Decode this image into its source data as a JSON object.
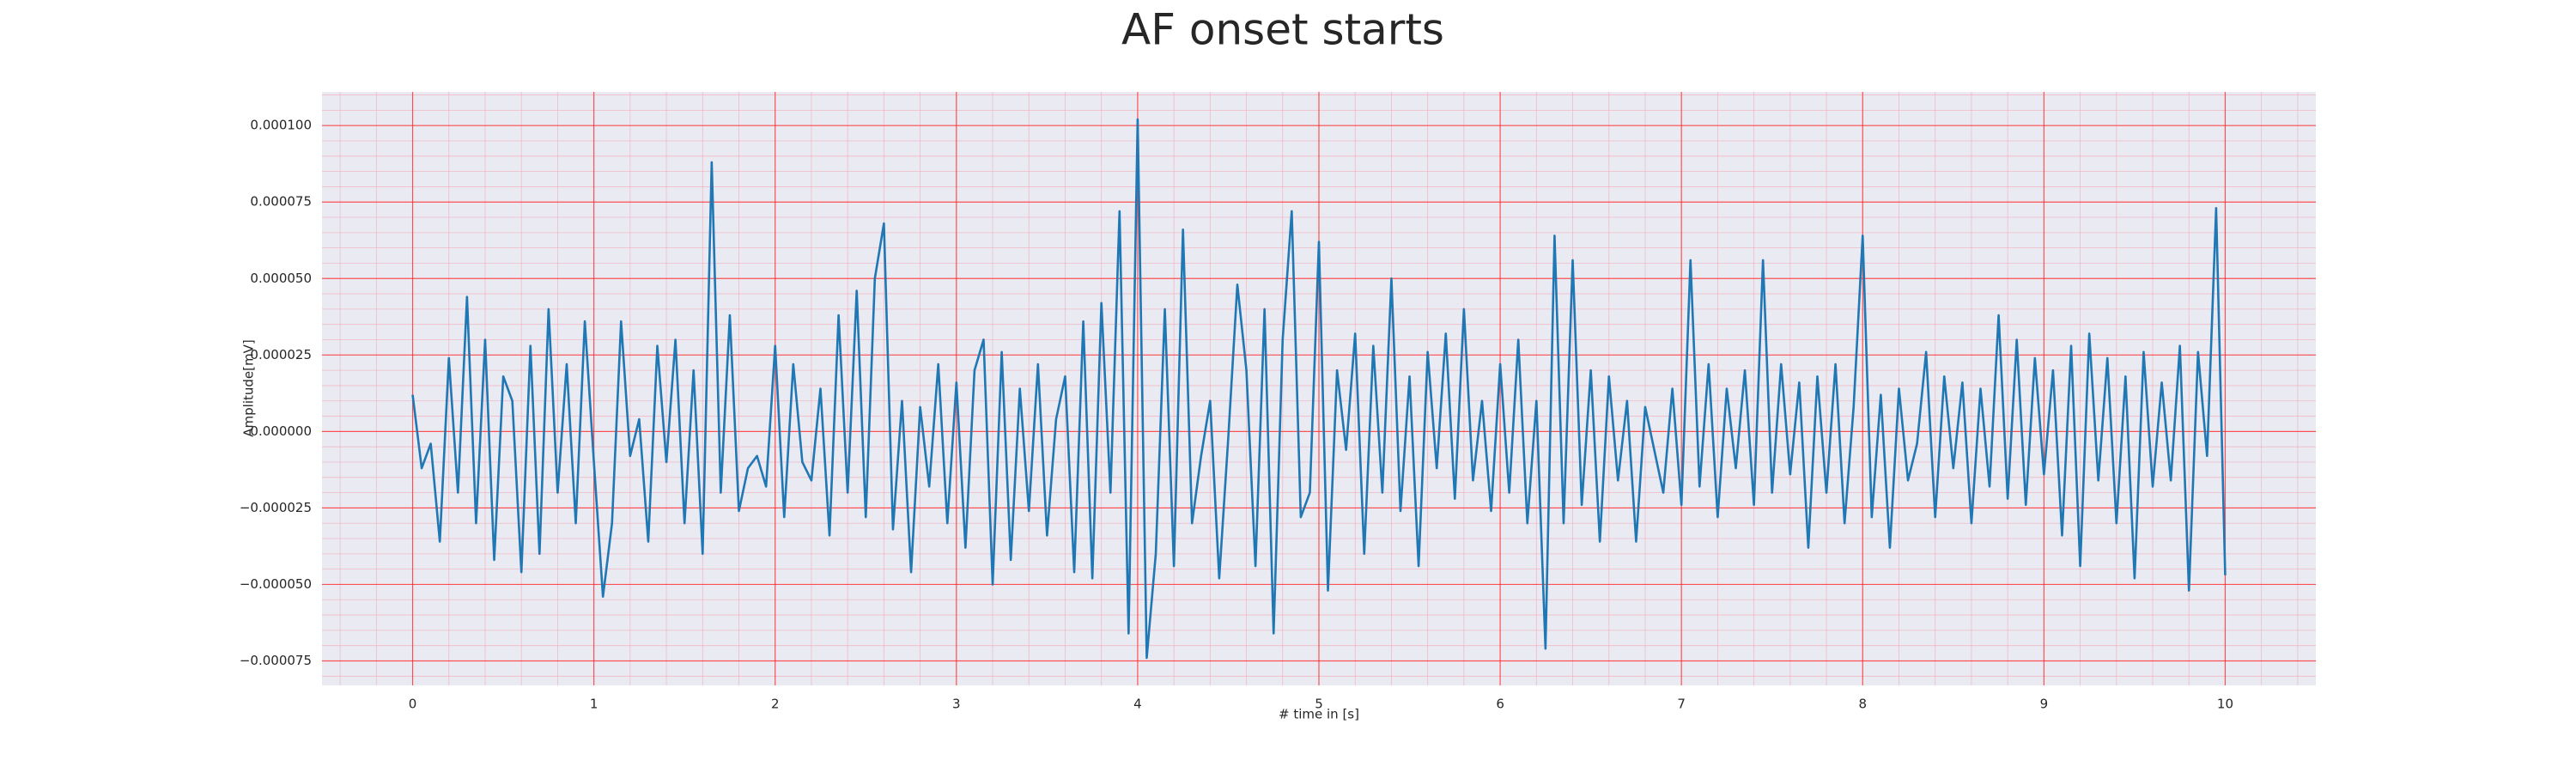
{
  "chart_data": {
    "type": "line",
    "title": "AF onset starts",
    "x_label": "# time in [s]",
    "y_label": "Amplitude[mV]",
    "color": "#1f77b4",
    "grid": true,
    "minor_grid": true,
    "xlim": [
      -0.5,
      10.5
    ],
    "ylim": [
      -8.3e-05,
      0.000111
    ],
    "xticks": [
      0,
      1,
      2,
      3,
      4,
      5,
      6,
      7,
      8,
      9,
      10
    ],
    "yticks": [
      {
        "value": -7.5e-05,
        "label": "−0.000075"
      },
      {
        "value": -5e-05,
        "label": "−0.000050"
      },
      {
        "value": -2.5e-05,
        "label": "−0.000025"
      },
      {
        "value": 0,
        "label": "0.000000"
      },
      {
        "value": 2.5e-05,
        "label": "0.000025"
      },
      {
        "value": 5e-05,
        "label": "0.000050"
      },
      {
        "value": 7.5e-05,
        "label": "0.000075"
      },
      {
        "value": 0.0001,
        "label": "0.000100"
      }
    ],
    "x": [
      0,
      0.05,
      0.1,
      0.15,
      0.2,
      0.25,
      0.3,
      0.35,
      0.4,
      0.45,
      0.5,
      0.55,
      0.6,
      0.65,
      0.7,
      0.75,
      0.8,
      0.85,
      0.9,
      0.95,
      1,
      1.05,
      1.1,
      1.15,
      1.2,
      1.25,
      1.3,
      1.35,
      1.4,
      1.45,
      1.5,
      1.55,
      1.6,
      1.65,
      1.7,
      1.75,
      1.8,
      1.85,
      1.9,
      1.95,
      2,
      2.05,
      2.1,
      2.15,
      2.2,
      2.25,
      2.3,
      2.35,
      2.4,
      2.45,
      2.5,
      2.55,
      2.6,
      2.65,
      2.7,
      2.75,
      2.8,
      2.85,
      2.9,
      2.95,
      3,
      3.05,
      3.1,
      3.15,
      3.2,
      3.25,
      3.3,
      3.35,
      3.4,
      3.45,
      3.5,
      3.55,
      3.6,
      3.65,
      3.7,
      3.75,
      3.8,
      3.85,
      3.9,
      3.95,
      4,
      4.05,
      4.1,
      4.15,
      4.2,
      4.25,
      4.3,
      4.35,
      4.4,
      4.45,
      4.5,
      4.55,
      4.6,
      4.65,
      4.7,
      4.75,
      4.8,
      4.85,
      4.9,
      4.95,
      5,
      5.05,
      5.1,
      5.15,
      5.2,
      5.25,
      5.3,
      5.35,
      5.4,
      5.45,
      5.5,
      5.55,
      5.6,
      5.65,
      5.7,
      5.75,
      5.8,
      5.85,
      5.9,
      5.95,
      6,
      6.05,
      6.1,
      6.15,
      6.2,
      6.25,
      6.3,
      6.35,
      6.4,
      6.45,
      6.5,
      6.55,
      6.6,
      6.65,
      6.7,
      6.75,
      6.8,
      6.85,
      6.9,
      6.95,
      7,
      7.05,
      7.1,
      7.15,
      7.2,
      7.25,
      7.3,
      7.35,
      7.4,
      7.45,
      7.5,
      7.55,
      7.6,
      7.65,
      7.7,
      7.75,
      7.8,
      7.85,
      7.9,
      7.95,
      8,
      8.05,
      8.1,
      8.15,
      8.2,
      8.25,
      8.3,
      8.35,
      8.4,
      8.45,
      8.5,
      8.55,
      8.6,
      8.65,
      8.7,
      8.75,
      8.8,
      8.85,
      8.9,
      8.95,
      9,
      9.05,
      9.1,
      9.15,
      9.2,
      9.25,
      9.3,
      9.35,
      9.4,
      9.45,
      9.5,
      9.55,
      9.6,
      9.65,
      9.7,
      9.75,
      9.8,
      9.85,
      9.9,
      9.95,
      10
    ],
    "values": [
      1.2e-05,
      -1.2e-05,
      -4e-06,
      -3.6e-05,
      2.4e-05,
      -2e-05,
      4.4e-05,
      -3e-05,
      3e-05,
      -4.2e-05,
      1.8e-05,
      1e-05,
      -4.6e-05,
      2.8e-05,
      -4e-05,
      4e-05,
      -2e-05,
      2.2e-05,
      -3e-05,
      3.6e-05,
      -1e-05,
      -5.4e-05,
      -3e-05,
      3.6e-05,
      -8e-06,
      4e-06,
      -3.6e-05,
      2.8e-05,
      -1e-05,
      3e-05,
      -3e-05,
      2e-05,
      -4e-05,
      8.8e-05,
      -2e-05,
      3.8e-05,
      -2.6e-05,
      -1.2e-05,
      -8e-06,
      -1.8e-05,
      2.8e-05,
      -2.8e-05,
      2.2e-05,
      -1e-05,
      -1.6e-05,
      1.4e-05,
      -3.4e-05,
      3.8e-05,
      -2e-05,
      4.6e-05,
      -2.8e-05,
      5e-05,
      6.8e-05,
      -3.2e-05,
      1e-05,
      -4.6e-05,
      8e-06,
      -1.8e-05,
      2.2e-05,
      -3e-05,
      1.6e-05,
      -3.8e-05,
      2e-05,
      3e-05,
      -5e-05,
      2.6e-05,
      -4.2e-05,
      1.4e-05,
      -2.6e-05,
      2.2e-05,
      -3.4e-05,
      4e-06,
      1.8e-05,
      -4.6e-05,
      3.6e-05,
      -4.8e-05,
      4.2e-05,
      -2e-05,
      7.2e-05,
      -6.6e-05,
      0.000102,
      -7.4e-05,
      -4e-05,
      4e-05,
      -4.4e-05,
      6.6e-05,
      -3e-05,
      -8e-06,
      1e-05,
      -4.8e-05,
      -2e-06,
      4.8e-05,
      2e-05,
      -4.4e-05,
      4e-05,
      -6.6e-05,
      3e-05,
      7.2e-05,
      -2.8e-05,
      -2e-05,
      6.2e-05,
      -5.2e-05,
      2e-05,
      -6e-06,
      3.2e-05,
      -4e-05,
      2.8e-05,
      -2e-05,
      5e-05,
      -2.6e-05,
      1.8e-05,
      -4.4e-05,
      2.6e-05,
      -1.2e-05,
      3.2e-05,
      -2.2e-05,
      4e-05,
      -1.6e-05,
      1e-05,
      -2.6e-05,
      2.2e-05,
      -2e-05,
      3e-05,
      -3e-05,
      1e-05,
      -7.1e-05,
      6.4e-05,
      -3e-05,
      5.6e-05,
      -2.4e-05,
      2e-05,
      -3.6e-05,
      1.8e-05,
      -1.6e-05,
      1e-05,
      -3.6e-05,
      8e-06,
      -6e-06,
      -2e-05,
      1.4e-05,
      -2.4e-05,
      5.6e-05,
      -1.8e-05,
      2.2e-05,
      -2.8e-05,
      1.4e-05,
      -1.2e-05,
      2e-05,
      -2.4e-05,
      5.6e-05,
      -2e-05,
      2.2e-05,
      -1.4e-05,
      1.6e-05,
      -3.8e-05,
      1.8e-05,
      -2e-05,
      2.2e-05,
      -3e-05,
      8e-06,
      6.4e-05,
      -2.8e-05,
      1.2e-05,
      -3.8e-05,
      1.4e-05,
      -1.6e-05,
      -4e-06,
      2.6e-05,
      -2.8e-05,
      1.8e-05,
      -1.2e-05,
      1.6e-05,
      -3e-05,
      1.4e-05,
      -1.8e-05,
      3.8e-05,
      -2.2e-05,
      3e-05,
      -2.4e-05,
      2.4e-05,
      -1.4e-05,
      2e-05,
      -3.4e-05,
      2.8e-05,
      -4.4e-05,
      3.2e-05,
      -1.6e-05,
      2.4e-05,
      -3e-05,
      1.8e-05,
      -4.8e-05,
      2.6e-05,
      -1.8e-05,
      1.6e-05,
      -1.6e-05,
      2.8e-05,
      -5.2e-05,
      2.6e-05,
      -8e-06,
      7.3e-05,
      -4.7e-05
    ]
  }
}
